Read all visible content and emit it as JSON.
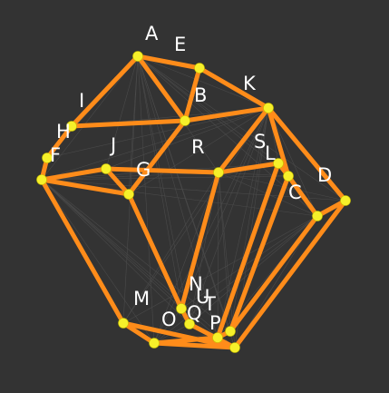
{
  "diagram": {
    "background": "#333333",
    "edge_color": "#ff8c1a",
    "vertex_color": "#f6f02a",
    "label_color": "#ffffff",
    "vertex_labels": [
      "A",
      "B",
      "C",
      "D",
      "E",
      "F",
      "G",
      "H",
      "I",
      "J",
      "K",
      "L",
      "M",
      "N",
      "O",
      "P",
      "Q",
      "R",
      "S",
      "T",
      "U"
    ]
  }
}
